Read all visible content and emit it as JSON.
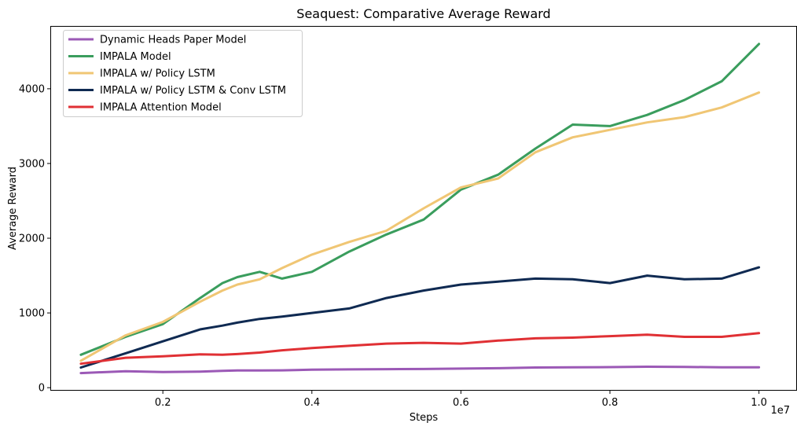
{
  "chart_data": {
    "type": "line",
    "title": "Seaquest: Comparative Average Reward",
    "xlabel": "Steps",
    "ylabel": "Average Reward",
    "x_scale_label": "1e7",
    "xlim": [
      0.05,
      1.05
    ],
    "ylim": [
      -30,
      4830
    ],
    "x_ticks": [
      0.2,
      0.4,
      0.6,
      0.8,
      1.0
    ],
    "x_tick_labels": [
      "0.2",
      "0.4",
      "0.6",
      "0.8",
      "1.0"
    ],
    "y_ticks": [
      0,
      1000,
      2000,
      3000,
      4000
    ],
    "y_tick_labels": [
      "0",
      "1000",
      "2000",
      "3000",
      "4000"
    ],
    "grid": false,
    "legend_position": "upper-left",
    "x": [
      0.09,
      0.15,
      0.2,
      0.25,
      0.28,
      0.3,
      0.33,
      0.36,
      0.4,
      0.45,
      0.5,
      0.55,
      0.6,
      0.65,
      0.7,
      0.75,
      0.8,
      0.85,
      0.9,
      0.95,
      1.0
    ],
    "series": [
      {
        "name": "Dynamic Heads Paper Model",
        "color": "#9b59b6",
        "values": [
          195,
          220,
          210,
          215,
          225,
          230,
          230,
          232,
          240,
          245,
          248,
          250,
          255,
          260,
          270,
          272,
          275,
          280,
          278,
          272,
          272
        ]
      },
      {
        "name": "IMPALA Model",
        "color": "#3a9d5d",
        "values": [
          440,
          680,
          850,
          1200,
          1400,
          1480,
          1550,
          1460,
          1550,
          1820,
          2050,
          2250,
          2650,
          2850,
          3200,
          3520,
          3500,
          3650,
          3850,
          4100,
          4600
        ]
      },
      {
        "name": "IMPALA w/ Policy LSTM",
        "color": "#f0c674",
        "values": [
          360,
          700,
          880,
          1150,
          1300,
          1380,
          1450,
          1600,
          1780,
          1950,
          2100,
          2400,
          2680,
          2800,
          3150,
          3350,
          3450,
          3550,
          3620,
          3750,
          3950
        ]
      },
      {
        "name": "IMPALA w/ Policy LSTM & Conv LSTM",
        "color": "#0f2a52",
        "values": [
          270,
          460,
          620,
          780,
          830,
          870,
          920,
          950,
          1000,
          1060,
          1200,
          1300,
          1380,
          1420,
          1460,
          1450,
          1400,
          1500,
          1450,
          1460,
          1610
        ]
      },
      {
        "name": "IMPALA Attention Model",
        "color": "#e03034",
        "values": [
          320,
          400,
          420,
          445,
          440,
          450,
          470,
          500,
          530,
          560,
          590,
          600,
          590,
          630,
          660,
          670,
          690,
          710,
          680,
          680,
          730
        ]
      }
    ]
  }
}
